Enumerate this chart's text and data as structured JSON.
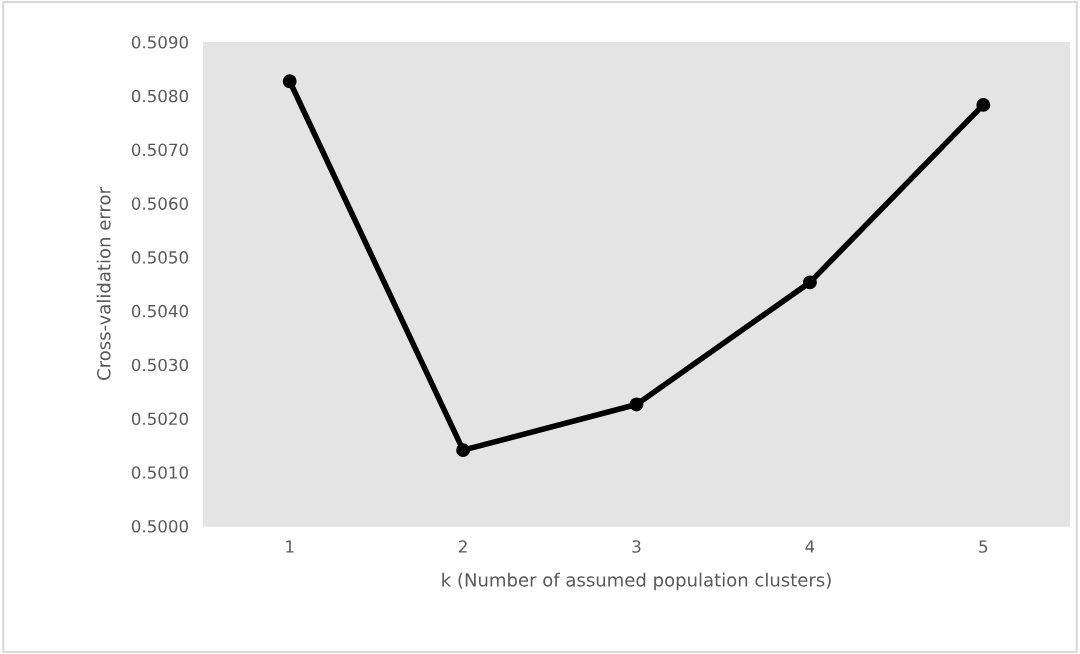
{
  "chart_data": {
    "type": "line",
    "xlabel": "k (Number of assumed population clusters)",
    "ylabel": "Cross-validation error",
    "categories": [
      "1",
      "2",
      "3",
      "4",
      "5"
    ],
    "series": [
      {
        "color": "#000000",
        "values": [
          0.50827,
          0.50141,
          0.50226,
          0.50453,
          0.50783
        ]
      }
    ],
    "ylim": [
      0.5,
      0.509
    ],
    "yticks": [
      {
        "value": 0.5,
        "label": "0.5000"
      },
      {
        "value": 0.501,
        "label": "0.5010"
      },
      {
        "value": 0.502,
        "label": "0.5020"
      },
      {
        "value": 0.503,
        "label": "0.5030"
      },
      {
        "value": 0.504,
        "label": "0.5040"
      },
      {
        "value": 0.505,
        "label": "0.5050"
      },
      {
        "value": 0.506,
        "label": "0.5060"
      },
      {
        "value": 0.507,
        "label": "0.5070"
      },
      {
        "value": 0.508,
        "label": "0.5080"
      },
      {
        "value": 0.509,
        "label": "0.5090"
      }
    ],
    "grid": false,
    "marker": "circle",
    "line_style": "solid",
    "legend": false
  }
}
